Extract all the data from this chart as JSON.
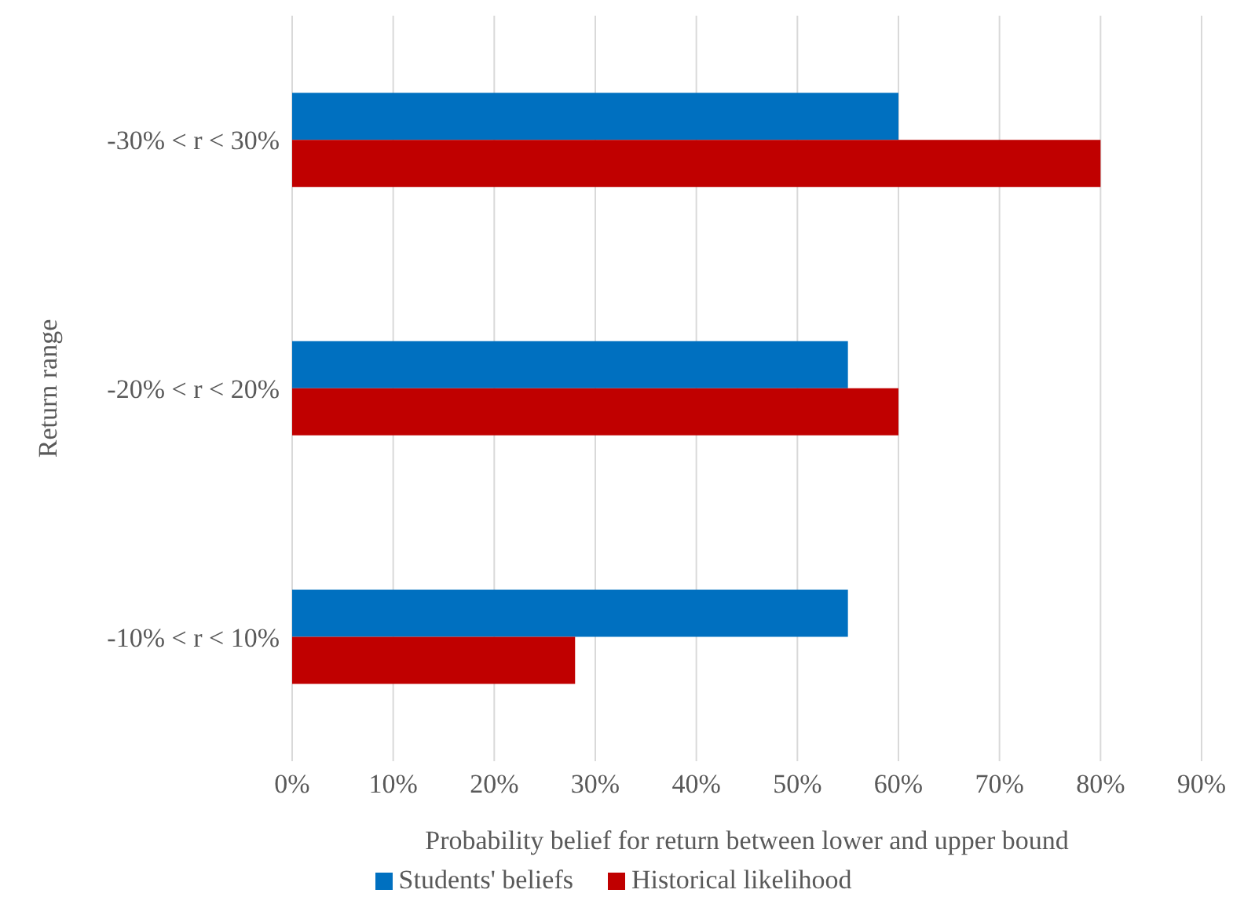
{
  "chart_data": {
    "type": "bar",
    "orientation": "horizontal",
    "xlabel": "Probability belief for return between lower and upper bound",
    "ylabel": "Return range",
    "categories": [
      "-30% < r < 30%",
      "-20% < r < 20%",
      "-10% < r < 10%"
    ],
    "series": [
      {
        "name": "Students' beliefs",
        "color": "#0070c0",
        "values": [
          60,
          55,
          55
        ]
      },
      {
        "name": "Historical likelihood",
        "color": "#c00000",
        "values": [
          80,
          60,
          28
        ]
      }
    ],
    "xlim": [
      0,
      90
    ],
    "xticks": [
      {
        "value": 0,
        "label": "0%"
      },
      {
        "value": 10,
        "label": "10%"
      },
      {
        "value": 20,
        "label": "20%"
      },
      {
        "value": 30,
        "label": "30%"
      },
      {
        "value": 40,
        "label": "40%"
      },
      {
        "value": 50,
        "label": "50%"
      },
      {
        "value": 60,
        "label": "60%"
      },
      {
        "value": 70,
        "label": "70%"
      },
      {
        "value": 80,
        "label": "80%"
      },
      {
        "value": 90,
        "label": "90%"
      }
    ],
    "grid": "x",
    "legend": "bottom"
  }
}
